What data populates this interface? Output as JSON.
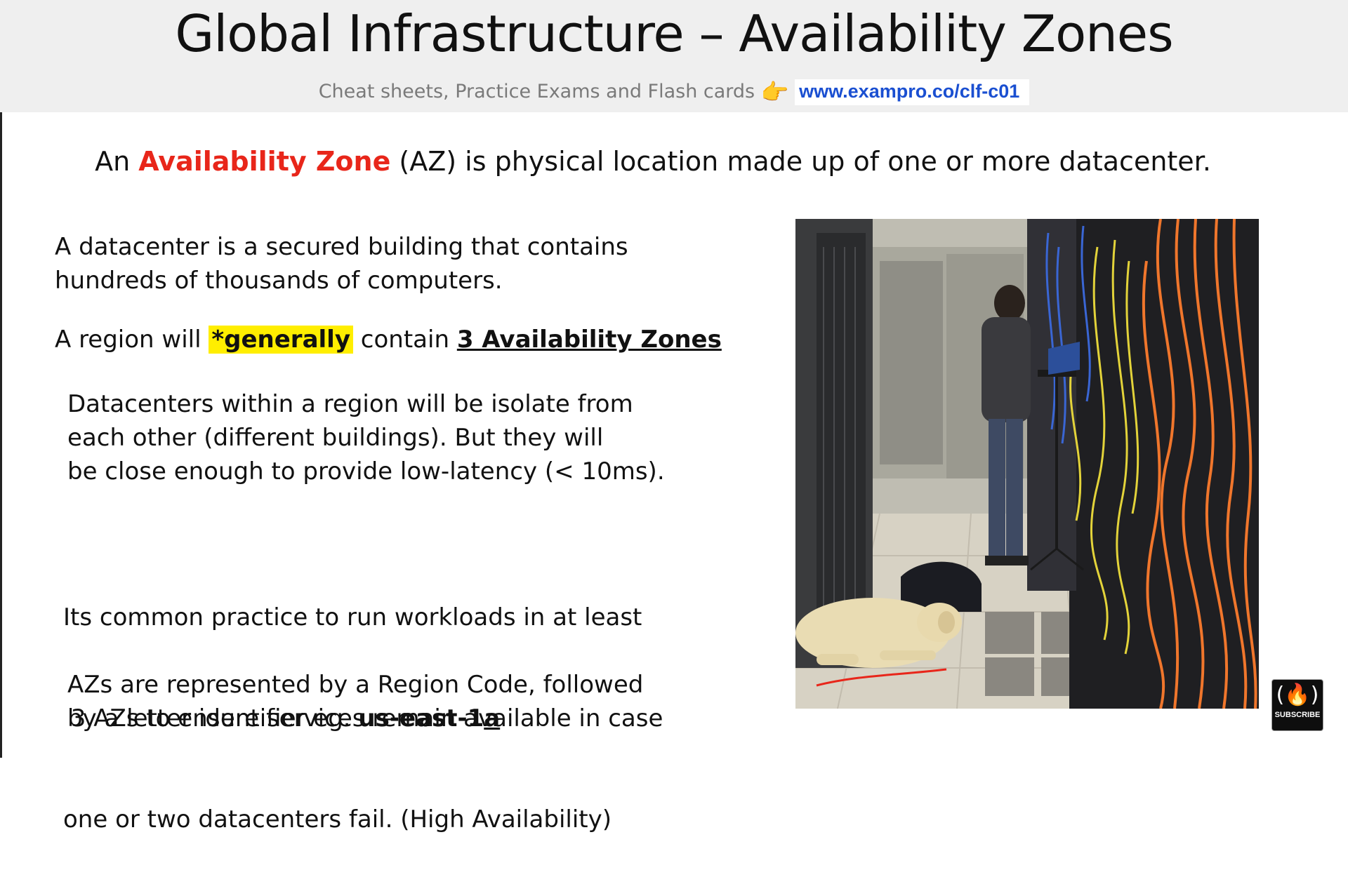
{
  "header": {
    "title": "Global Infrastructure – Availability Zones",
    "subtitle_text": "Cheat sheets, Practice Exams and Flash cards",
    "link_text": "www.exampro.co/clf-c01"
  },
  "definition": {
    "prefix": "An ",
    "term": "Availability Zone",
    "suffix": " (AZ) is physical location made up of one or more datacenter."
  },
  "paragraphs": {
    "datacenter": {
      "line1": "A datacenter is a secured building that contains",
      "line2": "hundreds of thousands of computers."
    },
    "region": {
      "prefix": "A region will ",
      "highlight": "*generally",
      "middle": " contain ",
      "emphasis": "3 Availability Zones"
    },
    "isolation": {
      "line1": "Datacenters within a region will be isolate from",
      "line2": "each other (different buildings). But they will",
      "line3": "be close enough to provide low-latency (< 10ms)."
    },
    "practice": {
      "line1": "Its common practice to run workloads in at least",
      "line2": " 3 AZs to ensure services remain available in case",
      "line3": "one or two datacenters fail. (High Availability)"
    },
    "codes": {
      "line1": "AZs are represented by a Region Code, followed",
      "line2_prefix": "by a letter identifier eg. ",
      "code_main": "us-east-1",
      "code_letter": "a"
    }
  },
  "photo": {
    "icon": "datacenter-photo"
  },
  "subscribe": {
    "glyph": "(🔥)",
    "label": "SUBSCRIBE"
  }
}
